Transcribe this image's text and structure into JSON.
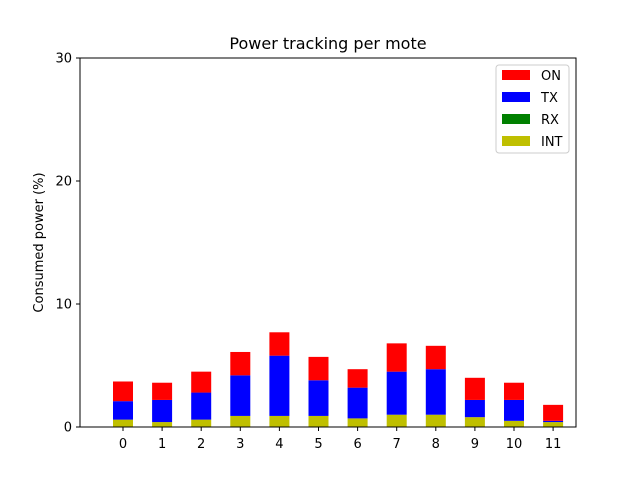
{
  "chart_data": {
    "type": "bar",
    "stacked": true,
    "title": "Power tracking per mote",
    "xlabel": "",
    "ylabel": "Consumed power (%)",
    "ylim": [
      0,
      30
    ],
    "yticks": [
      0,
      10,
      20,
      30
    ],
    "categories": [
      "0",
      "1",
      "2",
      "3",
      "4",
      "5",
      "6",
      "7",
      "8",
      "9",
      "10",
      "11"
    ],
    "legend_position": "top-right",
    "grid": false,
    "series": [
      {
        "name": "INT",
        "color": "#bfbf00",
        "values": [
          0.6,
          0.4,
          0.6,
          0.9,
          0.9,
          0.9,
          0.7,
          1.0,
          1.0,
          0.8,
          0.5,
          0.4
        ]
      },
      {
        "name": "RX",
        "color": "#008000",
        "values": [
          0,
          0,
          0,
          0,
          0,
          0,
          0,
          0,
          0,
          0,
          0,
          0
        ]
      },
      {
        "name": "TX",
        "color": "#0000ff",
        "values": [
          1.5,
          1.8,
          2.2,
          3.3,
          4.9,
          2.9,
          2.5,
          3.5,
          3.7,
          1.4,
          1.7,
          0.1
        ]
      },
      {
        "name": "ON",
        "color": "#ff0000",
        "values": [
          1.6,
          1.4,
          1.7,
          1.9,
          1.9,
          1.9,
          1.5,
          2.3,
          1.9,
          1.8,
          1.4,
          1.3
        ]
      }
    ],
    "legend_order": [
      "ON",
      "TX",
      "RX",
      "INT"
    ]
  }
}
